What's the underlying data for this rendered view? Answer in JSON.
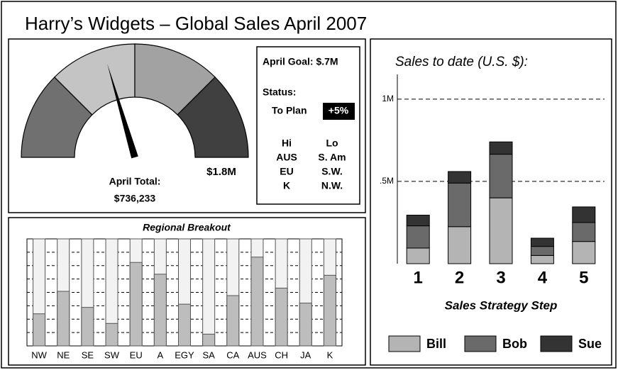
{
  "title": "Harry’s Widgets – Global Sales April 2007",
  "status_box": {
    "goal": "April Goal: $.7M",
    "status_label": "Status:",
    "status": "To Plan",
    "status_badge": "+5%",
    "hi_header": "Hi",
    "lo_header": "Lo",
    "hi": [
      "AUS",
      "EU",
      "K"
    ],
    "lo": [
      "S. Am",
      "S.W.",
      "N.W."
    ]
  },
  "chart_data": [
    {
      "type": "gauge",
      "label": "April Total:",
      "value": 736233,
      "value_label": "$736,233",
      "max": {
        "value": 1800000,
        "label": "$1.8M"
      },
      "colors": [
        "#707070",
        "#c4c4c4",
        "#a2a2a2",
        "#404040"
      ]
    },
    {
      "type": "bar",
      "title": "Regional Breakout",
      "categories": [
        "NW",
        "NE",
        "SE",
        "SW",
        "EU",
        "A",
        "EGY",
        "SA",
        "CA",
        "AUS",
        "CH",
        "JA",
        "K"
      ],
      "values": [
        30,
        51,
        36,
        21,
        78,
        67,
        39,
        11,
        47,
        83,
        54,
        40,
        66
      ],
      "color": "#bdbdbd",
      "ylim": [
        0,
        100
      ],
      "yticks": [
        12.5,
        25,
        37.5,
        50,
        62.5,
        75,
        87.5
      ],
      "grid": true
    },
    {
      "type": "stacked_bar",
      "title": "Sales to date (U.S. $):",
      "xlabel": "Sales Strategy Step",
      "categories": [
        "1",
        "2",
        "3",
        "4",
        "5"
      ],
      "series": [
        {
          "name": "Bill",
          "color": "#b4b4b4",
          "values": [
            95000,
            225000,
            400000,
            50000,
            135000
          ]
        },
        {
          "name": "Bob",
          "color": "#6a6a6a",
          "values": [
            135000,
            265000,
            265000,
            55000,
            115000
          ]
        },
        {
          "name": "Sue",
          "color": "#333333",
          "values": [
            65000,
            70000,
            75000,
            50000,
            95000
          ]
        }
      ],
      "ylim": [
        0,
        1150000
      ],
      "yticks": [
        {
          "value": 500000,
          "label": ".5M"
        },
        {
          "value": 1000000,
          "label": "1M"
        }
      ],
      "grid": true,
      "legend": "bottom"
    }
  ]
}
